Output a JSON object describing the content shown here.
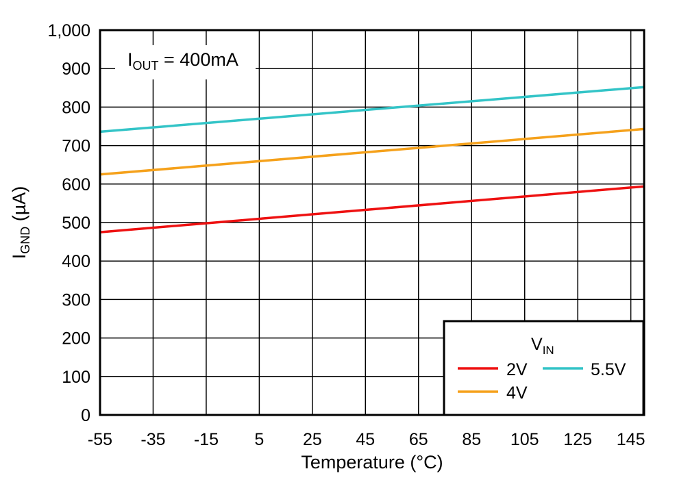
{
  "chart_data": {
    "type": "line",
    "xlabel": "Temperature (°C)",
    "ylabel": {
      "main": "I",
      "sub": "GND",
      "rest": " (µA)"
    },
    "annotation": {
      "main": "I",
      "sub": "OUT",
      "rest": " = 400mA"
    },
    "xlim": [
      -55,
      150
    ],
    "ylim": [
      0,
      1000
    ],
    "x_ticks": [
      -55,
      -35,
      -15,
      5,
      25,
      45,
      65,
      85,
      105,
      125,
      145
    ],
    "y_ticks": [
      0,
      100,
      200,
      300,
      400,
      500,
      600,
      700,
      800,
      900,
      1000
    ],
    "y_tick_labels": [
      "0",
      "100",
      "200",
      "300",
      "400",
      "500",
      "600",
      "700",
      "800",
      "900",
      "1,000"
    ],
    "grid": true,
    "legend": {
      "title_main": "V",
      "title_sub": "IN",
      "placement": "bottom-right"
    },
    "series": [
      {
        "name": "2V",
        "color": "#ee1111",
        "x": [
          -55,
          150
        ],
        "y": [
          475,
          594
        ]
      },
      {
        "name": "4V",
        "color": "#f5a11b",
        "x": [
          -55,
          150
        ],
        "y": [
          625,
          743
        ]
      },
      {
        "name": "5.5V",
        "color": "#33c4c7",
        "x": [
          -55,
          150
        ],
        "y": [
          736,
          852
        ]
      }
    ]
  }
}
